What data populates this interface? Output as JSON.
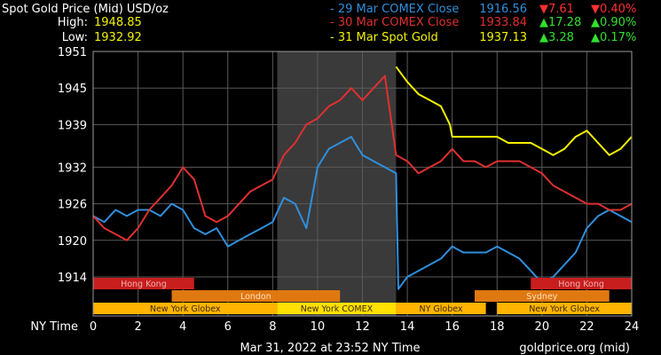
{
  "header": {
    "title": "Spot Gold Price (Mid) USD/oz",
    "high_label": "High:",
    "high_value": "1948.85",
    "low_label": "Low:",
    "low_value": "1932.92",
    "legend": [
      {
        "label": "- 29 Mar COMEX Close",
        "price": "1916.56",
        "change": "▼7.61",
        "pct": "▼0.40%",
        "color": "#2f8fdc",
        "change_color": "#ff3030"
      },
      {
        "label": "- 30 Mar COMEX Close",
        "price": "1933.84",
        "change": "▲17.28",
        "pct": "▲0.90%",
        "color": "#e03030",
        "change_color": "#30e030"
      },
      {
        "label": "- 31 Mar Spot Gold",
        "price": "1937.13",
        "change": "▲3.28",
        "pct": "▲0.17%",
        "color": "#f2f200",
        "change_color": "#30e030"
      }
    ]
  },
  "footer": {
    "timestamp": "Mar 31, 2022 at 23:52 NY Time",
    "source": "goldprice.org (mid)"
  },
  "chart_data": {
    "type": "line",
    "xlabel": "NY Time",
    "ylabel": "",
    "xlim": [
      0,
      24
    ],
    "ylim": [
      1908,
      1951
    ],
    "x_ticks": [
      0,
      2,
      4,
      6,
      8,
      10,
      12,
      14,
      16,
      18,
      20,
      22,
      24
    ],
    "y_ticks": [
      1914,
      1920,
      1926,
      1932,
      1939,
      1945,
      1951
    ],
    "grid": true,
    "highlight_range": [
      8.2,
      13.5
    ],
    "series": [
      {
        "name": "29 Mar COMEX Close",
        "color": "#2f8fdc",
        "x": [
          0,
          0.5,
          1,
          1.5,
          2,
          2.5,
          3,
          3.5,
          4,
          4.5,
          5,
          5.5,
          6,
          6.5,
          7,
          7.5,
          8,
          8.5,
          9,
          9.5,
          10,
          10.5,
          11,
          11.5,
          12,
          12.5,
          13,
          13.5,
          13.6,
          14,
          14.5,
          15,
          15.5,
          16,
          16.5,
          17,
          17.5,
          18,
          18.5,
          19,
          19.5,
          20,
          20.5,
          21,
          21.5,
          22,
          22.5,
          23,
          23.5,
          24
        ],
        "values": [
          1924,
          1923,
          1925,
          1924,
          1925,
          1925,
          1924,
          1926,
          1925,
          1922,
          1921,
          1922,
          1919,
          1920,
          1921,
          1922,
          1923,
          1927,
          1926,
          1922,
          1932,
          1935,
          1936,
          1937,
          1934,
          1933,
          1932,
          1931,
          1912,
          1914,
          1915,
          1916,
          1917,
          1919,
          1918,
          1918,
          1918,
          1919,
          1918,
          1917,
          1915,
          1913,
          1914,
          1916,
          1918,
          1922,
          1924,
          1925,
          1924,
          1923
        ]
      },
      {
        "name": "30 Mar COMEX Close",
        "color": "#e03030",
        "x": [
          0,
          0.5,
          1,
          1.5,
          2,
          2.5,
          3,
          3.5,
          4,
          4.5,
          5,
          5.5,
          6,
          6.5,
          7,
          7.5,
          8,
          8.5,
          9,
          9.5,
          10,
          10.5,
          11,
          11.5,
          12,
          12.5,
          13,
          13.5,
          14,
          14.5,
          15,
          15.5,
          16,
          16.5,
          17,
          17.5,
          18,
          18.5,
          19,
          19.5,
          20,
          20.5,
          21,
          21.5,
          22,
          22.5,
          23,
          23.5,
          24
        ],
        "values": [
          1924,
          1922,
          1921,
          1920,
          1922,
          1925,
          1927,
          1929,
          1932,
          1930,
          1924,
          1923,
          1924,
          1926,
          1928,
          1929,
          1930,
          1934,
          1936,
          1939,
          1940,
          1942,
          1943,
          1945,
          1943,
          1945,
          1947,
          1934,
          1933,
          1931,
          1932,
          1933,
          1935,
          1933,
          1933,
          1932,
          1933,
          1933,
          1933,
          1932,
          1931,
          1929,
          1928,
          1927,
          1926,
          1926,
          1925,
          1925,
          1926
        ]
      },
      {
        "name": "31 Mar Spot Gold",
        "color": "#f2f200",
        "x": [
          13.5,
          14,
          14.5,
          15,
          15.5,
          15.9,
          16,
          16.5,
          17,
          17.5,
          18,
          18.5,
          19,
          19.5,
          20,
          20.5,
          21,
          21.5,
          22,
          22.5,
          23,
          23.5,
          24
        ],
        "values": [
          1948.5,
          1946,
          1944,
          1943,
          1942,
          1939,
          1937,
          1937,
          1937,
          1937,
          1937,
          1936,
          1936,
          1936,
          1935,
          1934,
          1935,
          1937,
          1938,
          1936,
          1934,
          1935,
          1937
        ]
      }
    ],
    "sessions": [
      {
        "name": "Hong Kong",
        "start": 0,
        "end": 4.5,
        "row": 0,
        "color": "#c81e1e",
        "label_color": "#f0b0b0"
      },
      {
        "name": "Hong Kong",
        "start": 19.5,
        "end": 24,
        "row": 0,
        "color": "#c81e1e",
        "label_color": "#f0b0b0"
      },
      {
        "name": "London",
        "start": 3.5,
        "end": 11,
        "row": 1,
        "color": "#e07810",
        "label_color": "#ffe0c0"
      },
      {
        "name": "Sydney",
        "start": 17,
        "end": 23,
        "row": 1,
        "color": "#e07810",
        "label_color": "#ffe0c0"
      },
      {
        "name": "New York Globex",
        "start": 0,
        "end": 8.2,
        "row": 2,
        "color": "#ffb400",
        "label_color": "#3a2800"
      },
      {
        "name": "New York COMEX",
        "start": 8.2,
        "end": 13.5,
        "row": 2,
        "color": "#ffe000",
        "label_color": "#3a2800"
      },
      {
        "name": "NY Globex",
        "start": 13.5,
        "end": 17.5,
        "row": 2,
        "color": "#ffb400",
        "label_color": "#3a2800"
      },
      {
        "name": "New York Globex",
        "start": 18,
        "end": 24,
        "row": 2,
        "color": "#ffb400",
        "label_color": "#3a2800"
      }
    ]
  }
}
